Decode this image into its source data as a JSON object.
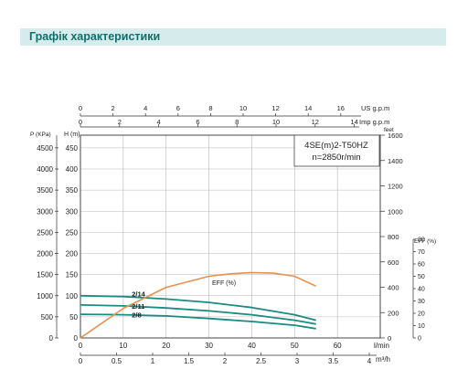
{
  "header": {
    "title": "Графік характеристики"
  },
  "model": {
    "line1": "4SE(m)2-T50HZ",
    "line2": "n=2850r/min"
  },
  "colors": {
    "banner_bg": "#d6ecec",
    "banner_text": "#0f6f6b",
    "curve": "#1b8a82",
    "eff": "#e8904e",
    "axis": "#333333",
    "grid": "#b8b8b8"
  },
  "chart_data": {
    "type": "line",
    "axes": {
      "flow_lmin": {
        "label": "l/min",
        "ticks": [
          0,
          10,
          20,
          30,
          40,
          50,
          60
        ],
        "range": [
          0,
          70
        ]
      },
      "flow_m3h": {
        "label": "m³/h",
        "ticks": [
          "0",
          "0.5",
          "1",
          "1.5",
          "2",
          "2.5",
          "3",
          "3.5",
          "4"
        ]
      },
      "flow_us_gpm": {
        "label": "US g.p.m",
        "ticks": [
          0,
          2,
          4,
          6,
          8,
          10,
          12,
          14,
          16
        ]
      },
      "flow_imp_gpm": {
        "label": "Imp g.p.m",
        "ticks": [
          0,
          2,
          4,
          6,
          8,
          10,
          12,
          14
        ]
      },
      "head_m": {
        "label": "H (m)",
        "ticks": [
          0,
          50,
          100,
          150,
          200,
          250,
          300,
          350,
          400,
          450
        ],
        "range": [
          0,
          480
        ]
      },
      "pressure_kpa": {
        "label": "P (KPa)",
        "ticks": [
          0,
          500,
          1000,
          1500,
          2000,
          2500,
          3000,
          3500,
          4000,
          4500
        ]
      },
      "head_feet": {
        "label": "feet",
        "ticks": [
          0,
          200,
          400,
          600,
          800,
          1000,
          1200,
          1400,
          1600
        ]
      },
      "eff_pct": {
        "label": "EFF (%)",
        "ticks": [
          0,
          10,
          20,
          30,
          40,
          50,
          60,
          70,
          80
        ],
        "range": [
          0,
          80
        ]
      }
    },
    "series": [
      {
        "name": "2/14",
        "x": [
          0,
          10,
          20,
          30,
          40,
          50,
          55
        ],
        "y": [
          100,
          98,
          92,
          84,
          72,
          55,
          42
        ]
      },
      {
        "name": "2/11",
        "x": [
          0,
          10,
          20,
          30,
          40,
          50,
          55
        ],
        "y": [
          78,
          76,
          71,
          64,
          55,
          42,
          33
        ]
      },
      {
        "name": "2/8",
        "x": [
          0,
          10,
          20,
          30,
          40,
          50,
          55
        ],
        "y": [
          56,
          55,
          52,
          46,
          39,
          30,
          22
        ]
      },
      {
        "name": "EFF (%)",
        "axis": "eff_pct",
        "x": [
          0,
          10,
          20,
          30,
          35,
          40,
          45,
          50,
          55
        ],
        "y": [
          0,
          24,
          41,
          50,
          52,
          53,
          52.5,
          50,
          42
        ]
      }
    ],
    "grid": true
  }
}
